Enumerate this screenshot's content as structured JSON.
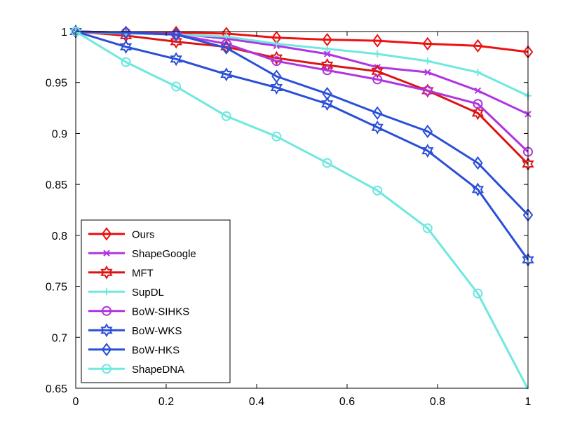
{
  "chart_data": {
    "type": "line",
    "title": "",
    "xlabel": "",
    "ylabel": "",
    "xlim": [
      0,
      1
    ],
    "ylim": [
      0.65,
      1
    ],
    "grid": false,
    "legend_position": "bottom-left",
    "x_ticks": [
      0,
      0.2,
      0.4,
      0.6,
      0.8,
      1
    ],
    "x_tick_labels": [
      "0",
      "0.2",
      "0.4",
      "0.6",
      "0.8",
      "1"
    ],
    "y_ticks": [
      0.65,
      0.7,
      0.75,
      0.8,
      0.85,
      0.9,
      0.95,
      1
    ],
    "y_tick_labels": [
      "0.65",
      "0.7",
      "0.75",
      "0.8",
      "0.85",
      "0.9",
      "0.95",
      "1"
    ],
    "x": [
      0,
      0.111,
      0.222,
      0.333,
      0.444,
      0.556,
      0.667,
      0.778,
      0.889,
      1
    ],
    "series": [
      {
        "name": "Ours",
        "color": "#ee1111",
        "marker": "diamond",
        "values": [
          1.0,
          0.999,
          0.999,
          0.998,
          0.994,
          0.992,
          0.991,
          0.988,
          0.986,
          0.98
        ]
      },
      {
        "name": "ShapeGoogle",
        "color": "#b035e0",
        "marker": "x",
        "values": [
          1.0,
          0.998,
          0.998,
          0.993,
          0.986,
          0.978,
          0.965,
          0.96,
          0.942,
          0.919
        ]
      },
      {
        "name": "MFT",
        "color": "#dd1414",
        "marker": "hexagram",
        "values": [
          1.0,
          0.996,
          0.99,
          0.985,
          0.974,
          0.967,
          0.961,
          0.942,
          0.92,
          0.87
        ]
      },
      {
        "name": "SupDL",
        "color": "#6ee8e0",
        "marker": "plus",
        "values": [
          1.0,
          0.998,
          0.997,
          0.995,
          0.988,
          0.983,
          0.978,
          0.971,
          0.96,
          0.937
        ]
      },
      {
        "name": "BoW-SIHKS",
        "color": "#b035e0",
        "marker": "circle",
        "values": [
          1.0,
          0.999,
          0.997,
          0.988,
          0.971,
          0.962,
          0.953,
          0.942,
          0.929,
          0.882
        ]
      },
      {
        "name": "BoW-WKS",
        "color": "#2a4fd8",
        "marker": "hexagram",
        "values": [
          1.0,
          0.985,
          0.973,
          0.958,
          0.945,
          0.929,
          0.906,
          0.883,
          0.845,
          0.776
        ]
      },
      {
        "name": "BoW-HKS",
        "color": "#2a4fd8",
        "marker": "diamond",
        "values": [
          1.0,
          0.999,
          0.997,
          0.984,
          0.956,
          0.939,
          0.92,
          0.902,
          0.871,
          0.82
        ]
      },
      {
        "name": "ShapeDNA",
        "color": "#6ee8e0",
        "marker": "circle",
        "values": [
          1.0,
          0.97,
          0.946,
          0.917,
          0.897,
          0.871,
          0.844,
          0.807,
          0.743,
          0.649
        ]
      }
    ]
  }
}
